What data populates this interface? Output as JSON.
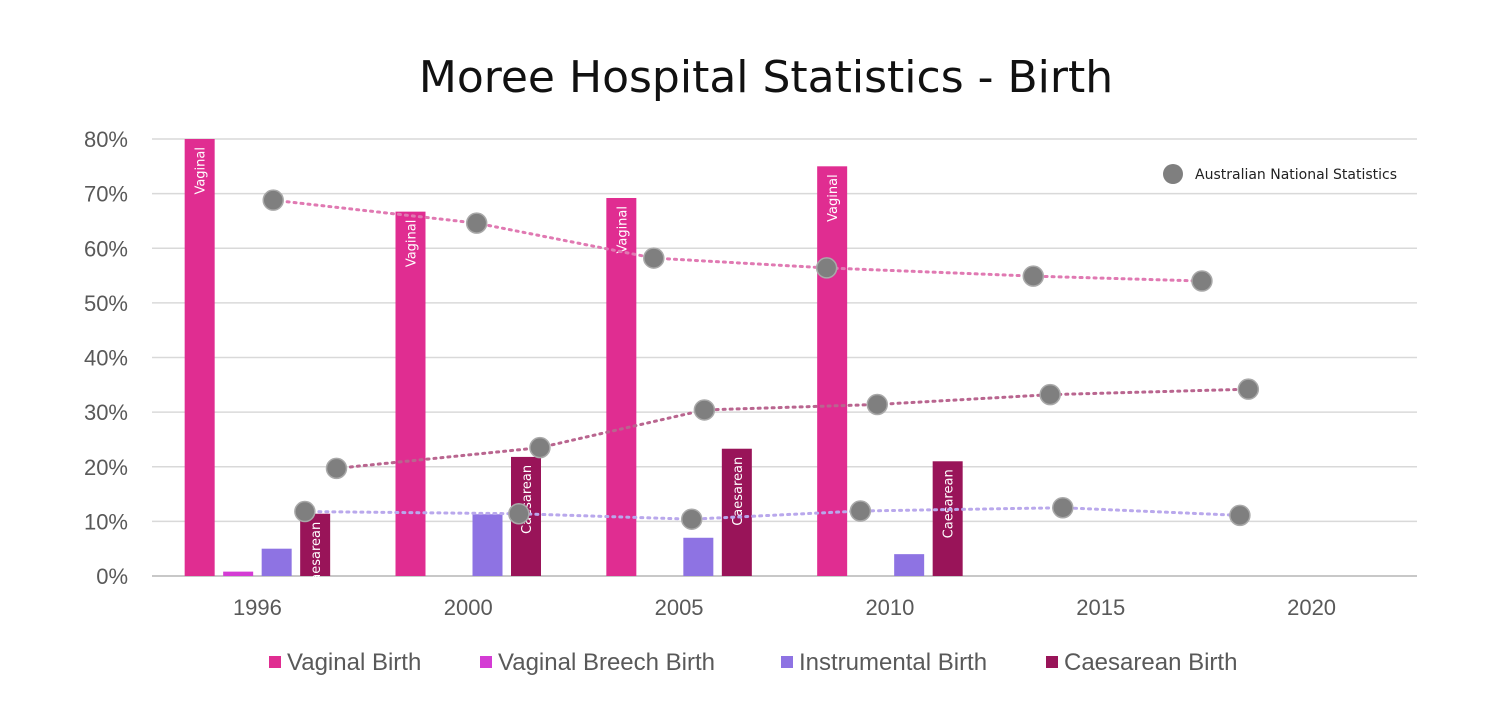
{
  "chart_data": {
    "type": "bar",
    "title": "Moree Hospital Statistics - Birth",
    "xlabel": "",
    "ylabel": "",
    "ylim": [
      0,
      80
    ],
    "yticks": [
      "0%",
      "10%",
      "20%",
      "30%",
      "40%",
      "50%",
      "60%",
      "70%",
      "80%"
    ],
    "categories": [
      "1996",
      "2000",
      "2005",
      "2010",
      "2015",
      "2020"
    ],
    "grid": true,
    "legend_position": "bottom",
    "series": [
      {
        "name": "Vaginal Birth",
        "color": "#e02d91",
        "values": [
          80,
          66.7,
          69.2,
          75,
          null,
          null
        ],
        "bar_label": "Vaginal"
      },
      {
        "name": "Vaginal Breech Birth",
        "color": "#d43cd4",
        "values": [
          0.8,
          null,
          null,
          null,
          null,
          null
        ]
      },
      {
        "name": "Instrumental Birth",
        "color": "#8e73e3",
        "values": [
          5,
          11.3,
          7,
          4,
          null,
          null
        ]
      },
      {
        "name": "Caesarean Birth",
        "color": "#991459",
        "values": [
          11.4,
          21.8,
          23.3,
          21,
          null,
          null
        ],
        "bar_label": "Caesarean"
      }
    ],
    "national_statistics": {
      "name": "Australian National Statistics",
      "marker_color": "#7f7f7f",
      "legend_position": "top-right",
      "lines": [
        {
          "name": "Vaginal",
          "color": "#e079b2",
          "points": [
            [
              1996.3,
              68.8
            ],
            [
              2000.2,
              64.6
            ],
            [
              2004.4,
              58.2
            ],
            [
              2008.5,
              56.4
            ],
            [
              2013.4,
              54.9
            ],
            [
              2017.4,
              54
            ]
          ]
        },
        {
          "name": "Caesarean",
          "color": "#b9658f",
          "points": [
            [
              1997.5,
              19.7
            ],
            [
              2001.7,
              23.5
            ],
            [
              2005.6,
              30.4
            ],
            [
              2009.7,
              31.4
            ],
            [
              2013.8,
              33.2
            ],
            [
              2018.5,
              34.2
            ]
          ]
        },
        {
          "name": "Instrumental",
          "color": "#b9a8ec",
          "points": [
            [
              1996.9,
              11.8
            ],
            [
              2001.2,
              11.4
            ],
            [
              2005.3,
              10.4
            ],
            [
              2009.3,
              11.9
            ],
            [
              2014.1,
              12.5
            ],
            [
              2018.3,
              11.1
            ]
          ]
        }
      ]
    }
  }
}
